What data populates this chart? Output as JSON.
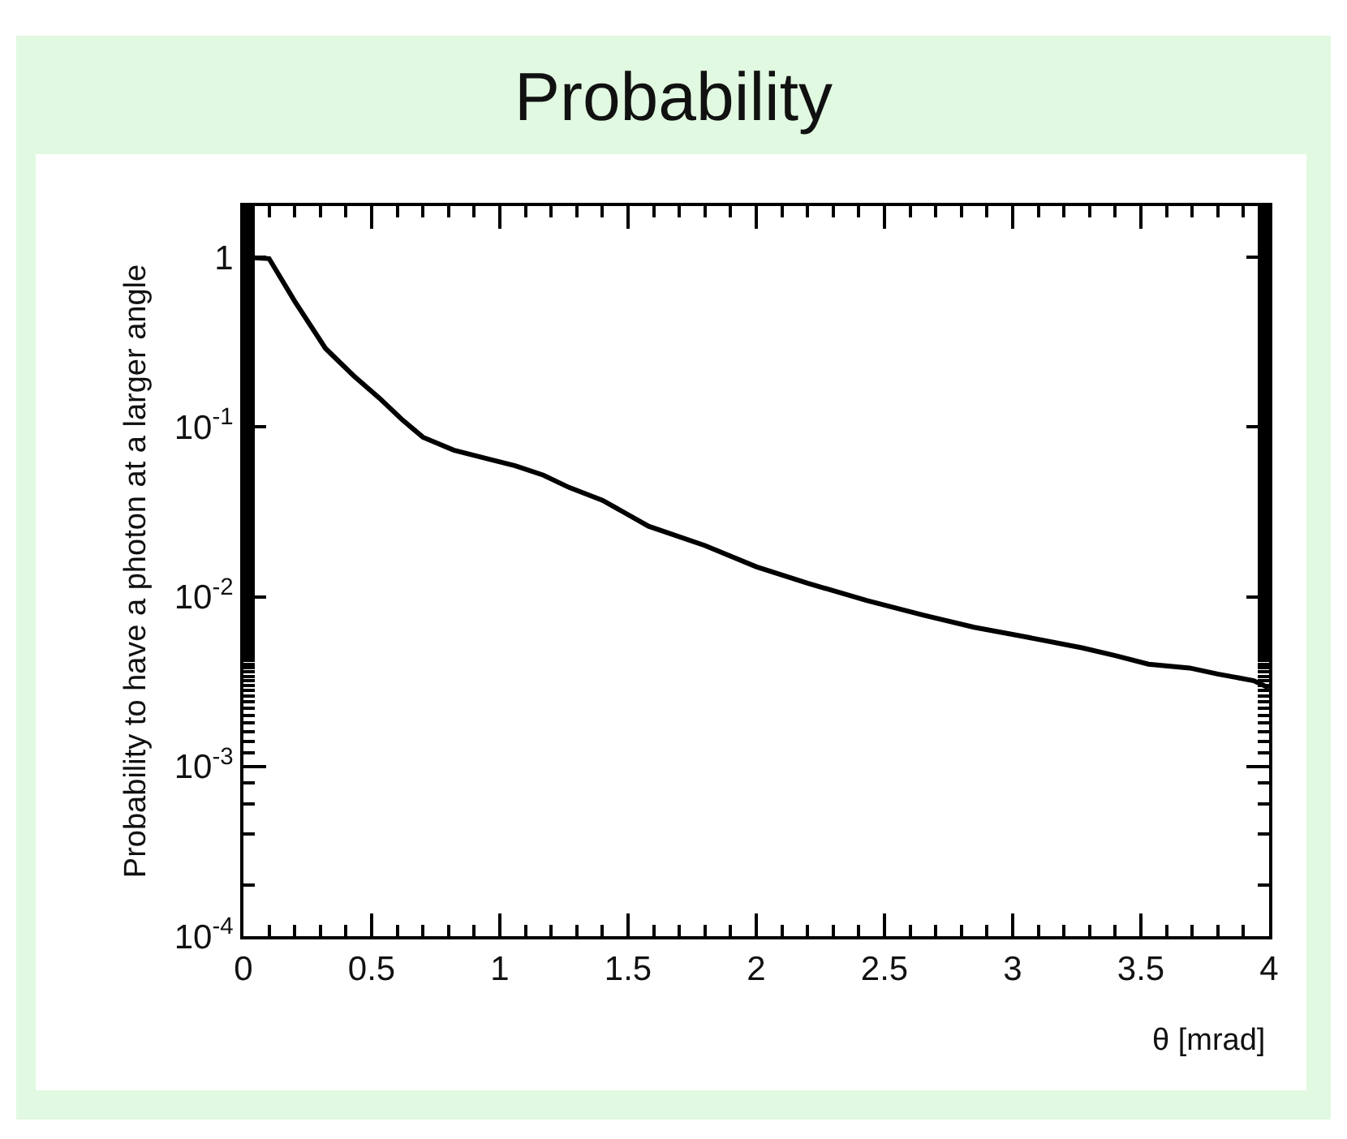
{
  "chart_data": {
    "type": "line",
    "title": "Probability",
    "xlabel": "θ [mrad]",
    "ylabel": "Probability to have a photon at a larger angle",
    "x": [
      0,
      0.1,
      0.2,
      0.32,
      0.43,
      0.53,
      0.62,
      0.7,
      0.82,
      0.95,
      1.06,
      1.17,
      1.27,
      1.4,
      1.58,
      1.8,
      2.0,
      2.2,
      2.43,
      2.65,
      2.85,
      3.05,
      3.27,
      3.4,
      3.53,
      3.69,
      3.8,
      3.94,
      4.0
    ],
    "series": [
      {
        "color": "#000000",
        "values": [
          1,
          0.98,
          0.55,
          0.29,
          0.2,
          0.148,
          0.11,
          0.087,
          0.073,
          0.065,
          0.059,
          0.052,
          0.044,
          0.037,
          0.026,
          0.02,
          0.015,
          0.012,
          0.0095,
          0.0078,
          0.0066,
          0.0058,
          0.005,
          0.0045,
          0.004,
          0.0038,
          0.0035,
          0.0032,
          0.0029
        ]
      }
    ],
    "log": "y",
    "xlim": [
      0,
      4
    ],
    "ylim": [
      0.0001,
      2
    ],
    "xticks": [
      0,
      0.5,
      1,
      1.5,
      2,
      2.5,
      3,
      3.5,
      4
    ],
    "yticks": [
      {
        "value": 0.0001,
        "label": "10$^{-4}$"
      },
      {
        "value": 0.001,
        "label": "10$^{-3}$"
      },
      {
        "value": 0.01,
        "label": "10$^{-2}$"
      },
      {
        "value": 0.1,
        "label": "10$^{-1}$"
      },
      1
    ],
    "grid": false,
    "legend": false,
    "marker": "none",
    "line_style": "solid"
  }
}
